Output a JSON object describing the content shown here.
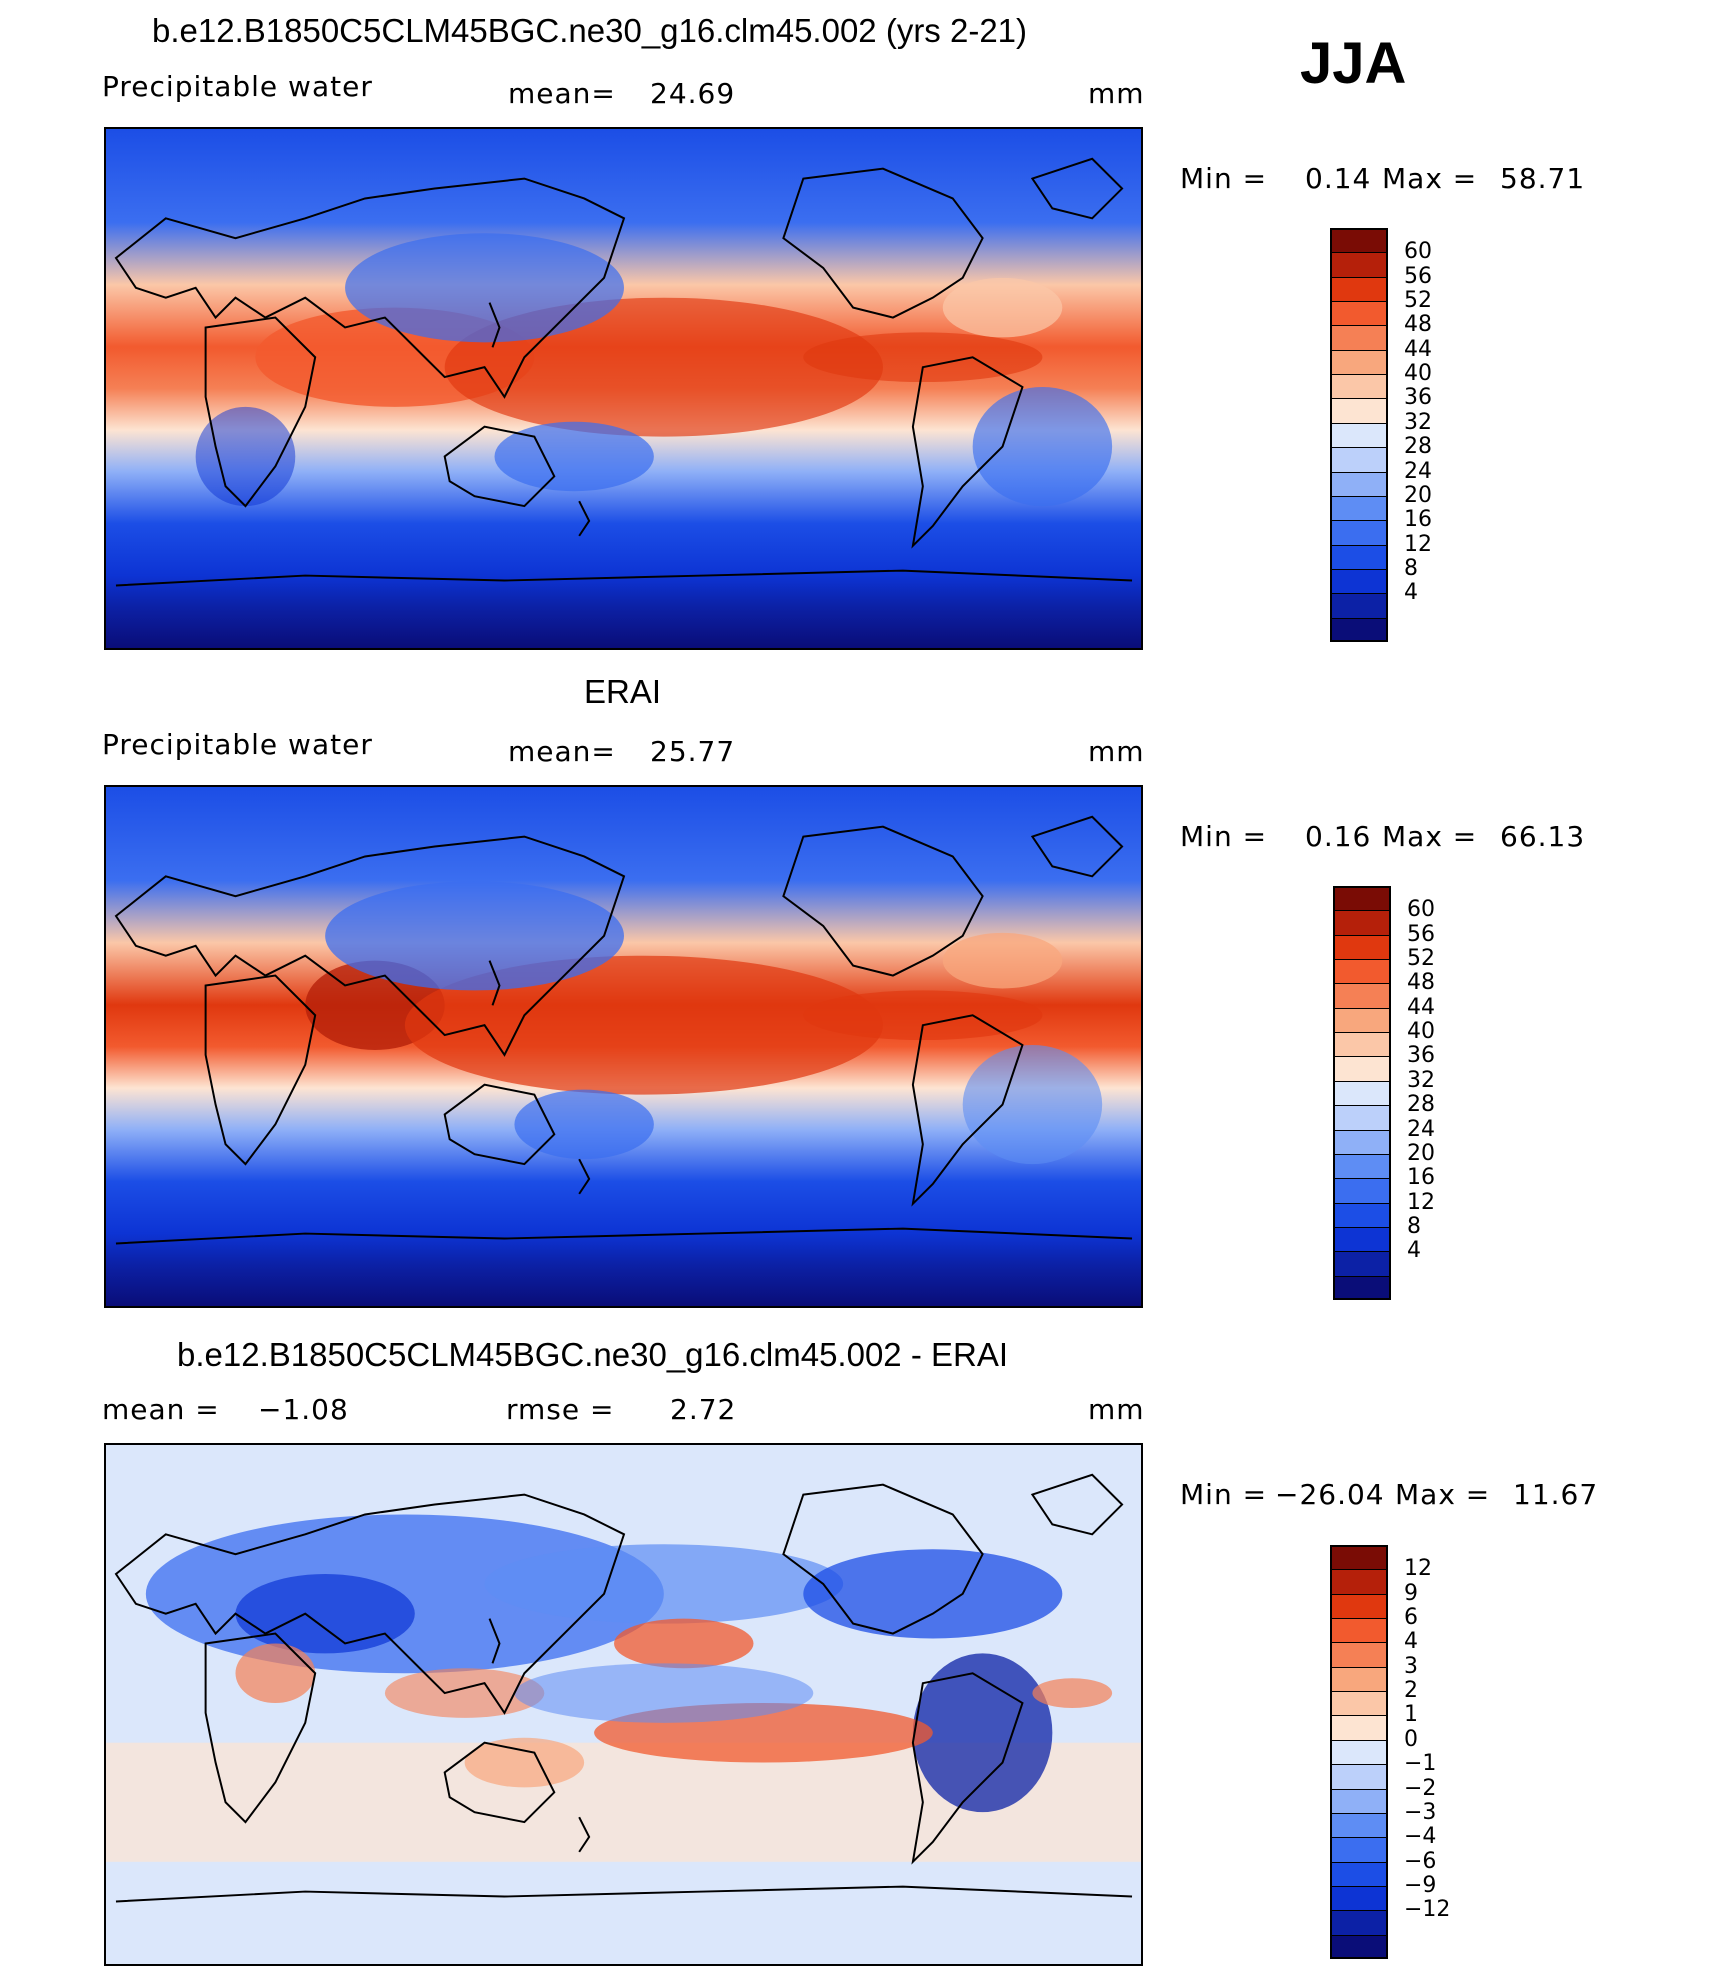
{
  "season": "JJA",
  "units": "mm",
  "colors": {
    "diverging_scale": [
      "#0a0d78",
      "#0c21a6",
      "#0d34d4",
      "#1c4ee6",
      "#3b6ef0",
      "#5e8df4",
      "#8fb0f7",
      "#bcd0fa",
      "#dbe7fb",
      "#fde4d2",
      "#fbc7a8",
      "#f8a77d",
      "#f58055",
      "#f25a2e",
      "#e0380f",
      "#b5200a",
      "#7a0c05"
    ],
    "land_outline": "#000000"
  },
  "panels": [
    {
      "title": "b.e12.B1850C5CLM45BGC.ne30_g16.clm45.002 (yrs 2-21)",
      "variable": "Precipitable water",
      "stat_label": "mean=",
      "stat_value": "24.69",
      "units": "mm",
      "min_label": "Min =",
      "min_value": "0.14",
      "max_label": "Max =",
      "max_value": "58.71",
      "colorbar_ticks": [
        "60",
        "56",
        "52",
        "48",
        "44",
        "40",
        "36",
        "32",
        "28",
        "24",
        "20",
        "16",
        "12",
        "8",
        "4"
      ]
    },
    {
      "title": "ERAI",
      "variable": "Precipitable water",
      "stat_label": "mean=",
      "stat_value": "25.77",
      "units": "mm",
      "min_label": "Min =",
      "min_value": "0.16",
      "max_label": "Max =",
      "max_value": "66.13",
      "colorbar_ticks": [
        "60",
        "56",
        "52",
        "48",
        "44",
        "40",
        "36",
        "32",
        "28",
        "24",
        "20",
        "16",
        "12",
        "8",
        "4"
      ]
    },
    {
      "title": "b.e12.B1850C5CLM45BGC.ne30_g16.clm45.002 - ERAI",
      "stat_label": "mean =",
      "stat_value": "−1.08",
      "rmse_label": "rmse =",
      "rmse_value": "2.72",
      "units": "mm",
      "min_label": "Min =",
      "min_value": "−26.04",
      "max_label": "Max =",
      "max_value": "11.67",
      "colorbar_ticks": [
        "12",
        "9",
        "6",
        "4",
        "3",
        "2",
        "1",
        "0",
        "−1",
        "−2",
        "−3",
        "−4",
        "−6",
        "−9",
        "−12"
      ]
    }
  ]
}
